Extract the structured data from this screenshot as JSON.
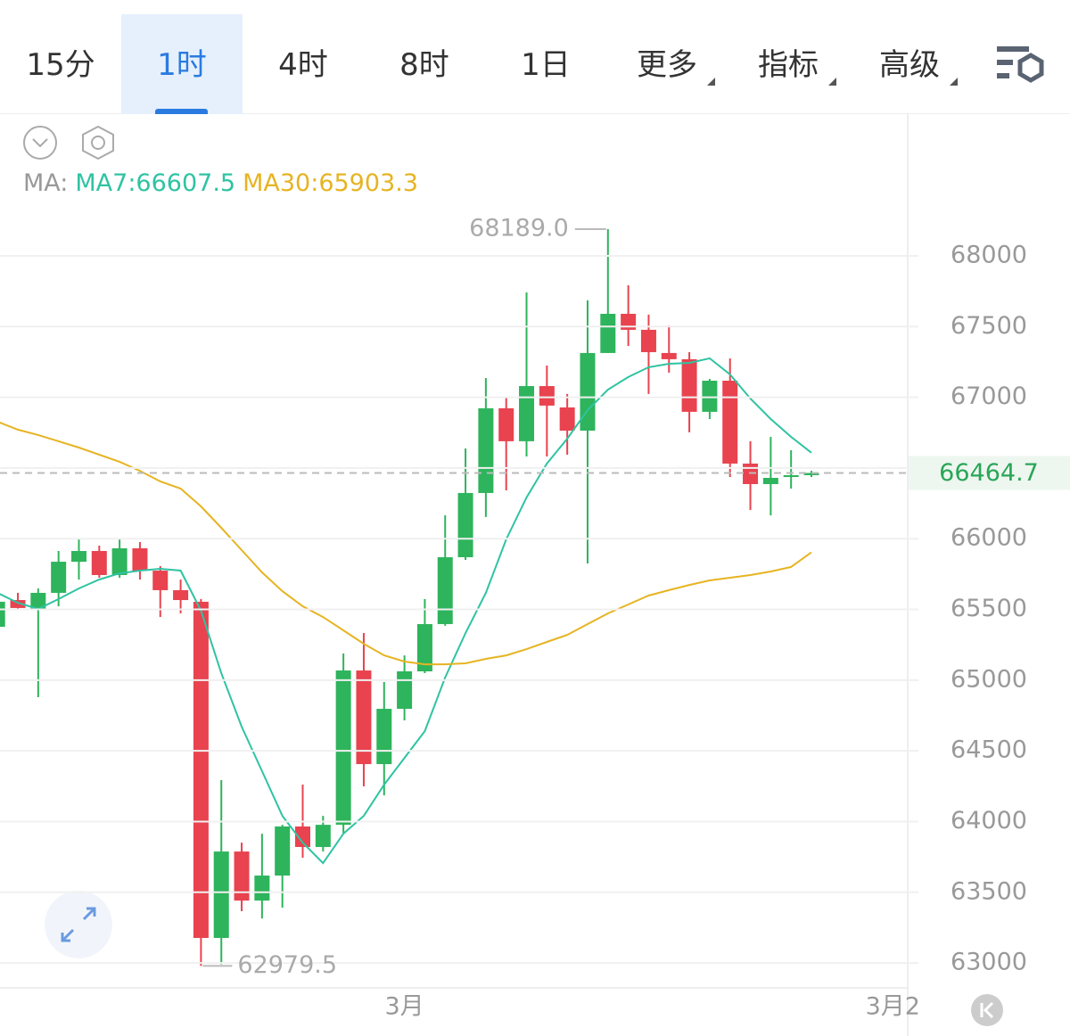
{
  "tabs": [
    {
      "label": "15分"
    },
    {
      "label": "1时",
      "active": true
    },
    {
      "label": "4时"
    },
    {
      "label": "8时"
    },
    {
      "label": "1日"
    },
    {
      "label": "更多",
      "dropdown": true
    },
    {
      "label": "指标",
      "dropdown": true
    },
    {
      "label": "高级",
      "dropdown": true
    }
  ],
  "chart_data": {
    "type": "candlestick",
    "ma_label": "MA:",
    "categories": [
      null,
      null,
      null,
      null,
      null,
      null,
      null,
      null,
      null,
      null,
      null,
      null,
      null,
      null,
      null,
      null,
      null,
      null,
      null,
      null,
      "3月",
      null,
      null,
      null,
      null,
      null,
      null,
      null,
      null,
      null,
      null,
      null,
      null,
      null,
      null,
      null,
      null,
      null,
      null,
      null,
      null,
      null,
      null,
      null,
      "3月2"
    ],
    "open": [
      65377,
      65566,
      65503,
      65617,
      65837,
      65913,
      65743,
      65932,
      65774,
      65636,
      65554,
      63177,
      63788,
      63441,
      63618,
      63965,
      63820,
      63977,
      65068,
      64406,
      64797,
      65062,
      65396,
      65869,
      66323,
      66922,
      66689,
      67079,
      66928,
      66764,
      67313,
      67590,
      67477,
      67313,
      67269,
      66897,
      67117,
      66531,
      66386,
      66436,
      66449,
      null,
      null,
      null,
      null
    ],
    "high": [
      65585,
      65617,
      65648,
      65913,
      65995,
      65951,
      65995,
      65976,
      65806,
      65711,
      65573,
      64293,
      63851,
      63914,
      63977,
      64261,
      64040,
      65188,
      65333,
      64986,
      65175,
      65573,
      66165,
      66638,
      67136,
      67004,
      67741,
      67224,
      67023,
      67685,
      68189,
      67792,
      67584,
      67508,
      67319,
      67130,
      67275,
      66689,
      66720,
      66626,
      66480,
      null,
      null,
      null,
      null
    ],
    "low": [
      65358,
      65503,
      64879,
      65522,
      65711,
      65724,
      65724,
      65711,
      65446,
      65472,
      62979.5,
      62990,
      63366,
      63315,
      63391,
      63744,
      63788,
      63914,
      64249,
      64185,
      64715,
      65049,
      65384,
      65850,
      66153,
      66342,
      66581,
      66581,
      66594,
      65825,
      67313,
      67363,
      67023,
      67174,
      66752,
      66846,
      66436,
      66203,
      66165,
      66354,
      66436,
      null,
      null,
      null,
      null
    ],
    "close": [
      65554,
      65510,
      65617,
      65837,
      65913,
      65743,
      65932,
      65774,
      65636,
      65566,
      63177,
      63788,
      63441,
      63618,
      63965,
      63820,
      63977,
      65068,
      64406,
      64797,
      65062,
      65396,
      65869,
      66323,
      66922,
      66689,
      67079,
      66941,
      66764,
      67313,
      67590,
      67477,
      67319,
      67269,
      66897,
      67117,
      66531,
      66386,
      66430,
      66449,
      66464.7,
      null,
      null,
      null,
      null
    ],
    "up_color": "#2eb45c",
    "down_color": "#e8434f",
    "series": [
      {
        "name": "MA7:66607.5",
        "color": "#2fc3a2",
        "values": [
          65617,
          65547,
          65503,
          65573,
          65648,
          65711,
          65755,
          65774,
          65787,
          65774,
          65491,
          65049,
          64671,
          64356,
          64040,
          63851,
          63706,
          63914,
          64040,
          64261,
          64450,
          64639,
          65018,
          65333,
          65617,
          65995,
          66291,
          66531,
          66707,
          66909,
          67054,
          67143,
          67212,
          67237,
          67243,
          67275,
          67161,
          66991,
          66846,
          66720,
          66607.5,
          null,
          null,
          null,
          null
        ]
      },
      {
        "name": "MA30:65903.3",
        "color": "#e6b422",
        "values": [
          66827,
          66771,
          66733,
          66689,
          66644,
          66594,
          66544,
          66480,
          66405,
          66354,
          66228,
          66077,
          65919,
          65762,
          65629,
          65522,
          65446,
          65352,
          65257,
          65175,
          65131,
          65112,
          65112,
          65119,
          65150,
          65175,
          65219,
          65270,
          65320,
          65396,
          65472,
          65535,
          65598,
          65636,
          65673,
          65705,
          65724,
          65743,
          65768,
          65800,
          65903.3,
          null,
          null,
          null,
          null
        ]
      }
    ],
    "current_price": 66464.7,
    "annotations": [
      {
        "value": 68189,
        "label": "68189.0"
      },
      62979.5
    ],
    "ylim": [
      62824,
      69002
    ],
    "yticks": [
      63000,
      63500,
      64000,
      64500,
      65000,
      65500,
      66000,
      66500,
      67000,
      67500,
      68000
    ],
    "grid": true
  }
}
